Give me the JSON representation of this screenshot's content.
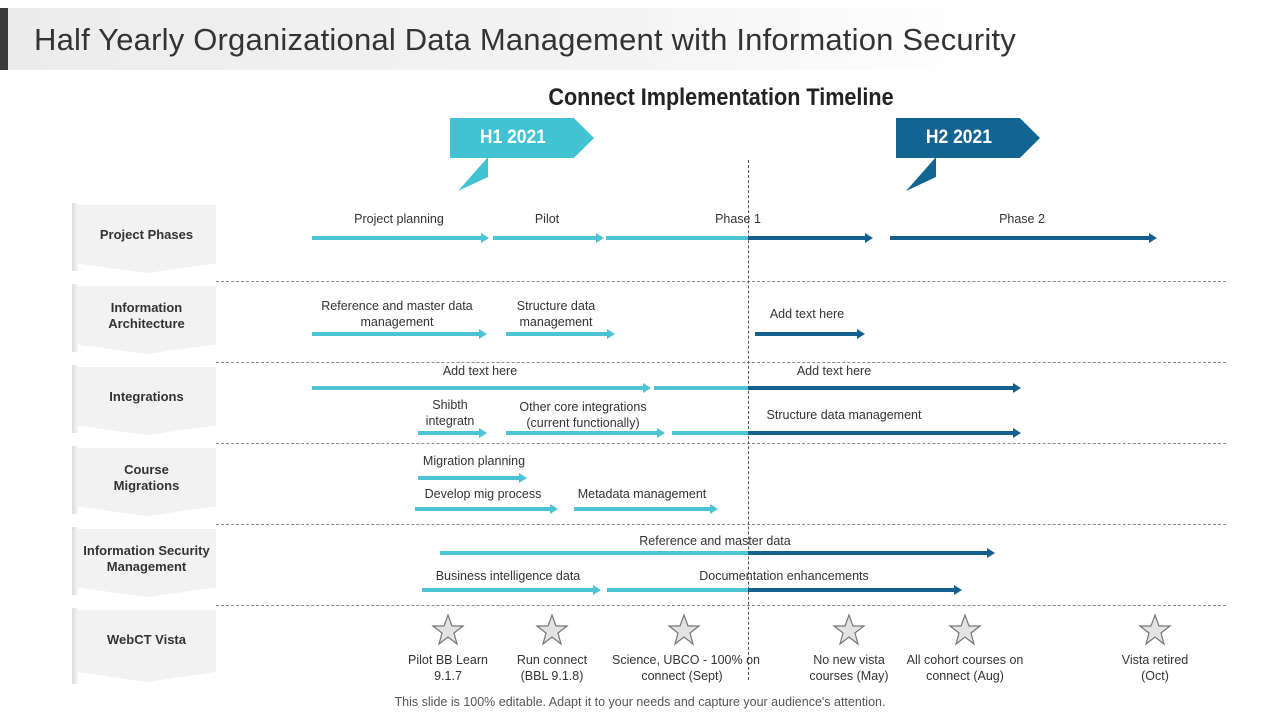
{
  "page_title": "Half Yearly Organizational Data Management with Information Security",
  "timeline_title": "Connect Implementation Timeline",
  "periods": [
    {
      "label": "H1 2021",
      "color": "#41c3d3"
    },
    {
      "label": "H2 2021",
      "color": "#136591"
    }
  ],
  "rows": [
    {
      "label": "Project Phases"
    },
    {
      "label": "Information Architecture"
    },
    {
      "label": "Integrations"
    },
    {
      "label": "Course Migrations"
    },
    {
      "label": "Information Security Management"
    },
    {
      "label": "WebCT Vista"
    }
  ],
  "bars": {
    "project_planning": "Project planning",
    "pilot": "Pilot",
    "phase1": "Phase 1",
    "phase2": "Phase 2",
    "ref_master": "Reference and master data management",
    "structure_data": "Structure data management",
    "ia_add_text": "Add text here",
    "int_add_text_1": "Add text here",
    "int_add_text_2": "Add text here",
    "shibth": "Shibth integratn",
    "other_core": "Other core integrations (current functionally)",
    "int_structure": "Structure data management",
    "migration_planning": "Migration planning",
    "develop_mig": "Develop mig process",
    "metadata_mgmt": "Metadata management",
    "ref_master_data": "Reference and master data",
    "business_intel": "Business intelligence data",
    "documentation": "Documentation enhancements"
  },
  "milestones": [
    {
      "line1": "Pilot BB Learn",
      "line2": "9.1.7"
    },
    {
      "line1": "Run connect",
      "line2": "(BBL 9.1.8)"
    },
    {
      "line1": "Science, UBCO - 100% on",
      "line2": "connect (Sept)"
    },
    {
      "line1": "No new vista",
      "line2": "courses (May)"
    },
    {
      "line1": "All cohort courses on",
      "line2": "connect (Aug)"
    },
    {
      "line1": "Vista retired",
      "line2": "(Oct)"
    }
  ],
  "colors": {
    "light_bar": "#4cc4d3",
    "dark_bar": "#155f8e"
  },
  "icons": {
    "milestone": "star-icon"
  },
  "footer": "This slide is 100% editable. Adapt it to your needs and capture your audience's attention."
}
